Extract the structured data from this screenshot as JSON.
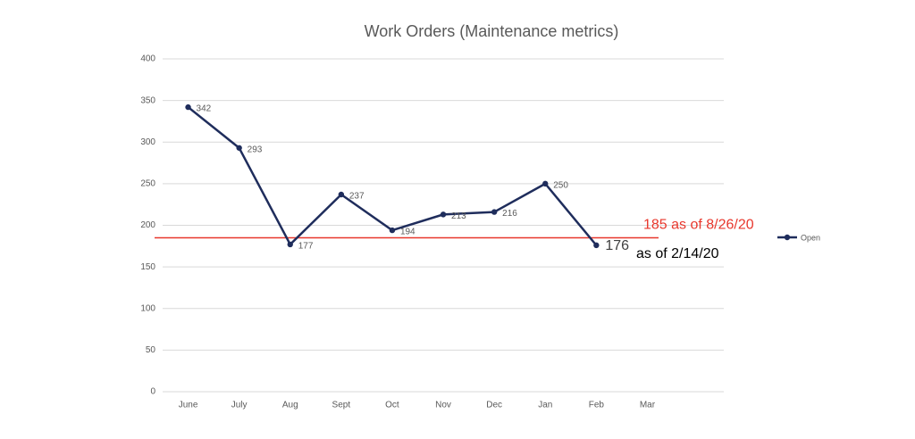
{
  "chart_data": {
    "type": "line",
    "title": "Work Orders (Maintenance metrics)",
    "categories": [
      "June",
      "July",
      "Aug",
      "Sept",
      "Oct",
      "Nov",
      "Dec",
      "Jan",
      "Feb",
      "Mar"
    ],
    "series": [
      {
        "name": "Open",
        "color": "#1f2d5c",
        "values": [
          342,
          293,
          177,
          237,
          194,
          213,
          216,
          250,
          176,
          null
        ]
      }
    ],
    "ylim": [
      0,
      400
    ],
    "yticks": [
      0,
      50,
      100,
      150,
      200,
      250,
      300,
      350,
      400
    ],
    "grid": true,
    "legend": "right",
    "reference_line": {
      "value": 185,
      "color": "#e8372c",
      "label": "185 as of 8/26/20"
    },
    "annotation": "as of 2/14/20"
  }
}
